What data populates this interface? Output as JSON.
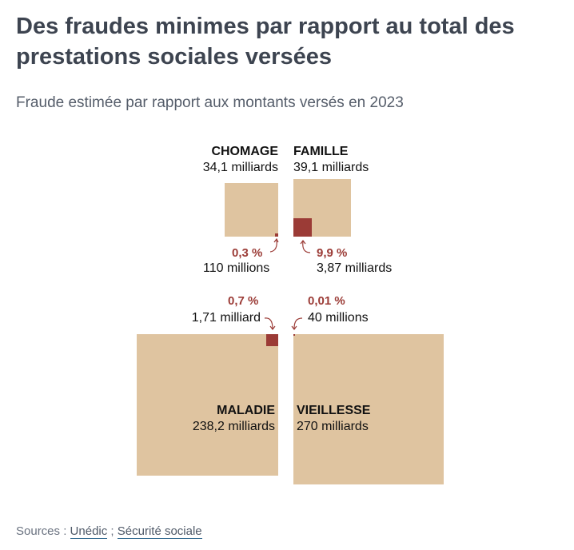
{
  "title": "Des fraudes minimes par rapport au total des prestations sociales versées",
  "subtitle": "Fraude estimée par rapport aux montants versés en 2023",
  "chart_data": {
    "type": "proportional-squares",
    "unit": "milliards d'euros",
    "colors": {
      "total": "#dfc4a0",
      "fraud": "#9b3b36"
    },
    "items": [
      {
        "key": "chomage",
        "name": "CHOMAGE",
        "total_label": "34,1 milliards",
        "total": 34.1,
        "fraud_pct_label": "0,3 %",
        "fraud_label": "110 millions",
        "fraud": 0.11
      },
      {
        "key": "famille",
        "name": "FAMILLE",
        "total_label": "39,1 milliards",
        "total": 39.1,
        "fraud_pct_label": "9,9 %",
        "fraud_label": "3,87 milliards",
        "fraud": 3.87
      },
      {
        "key": "maladie",
        "name": "MALADIE",
        "total_label": "238,2 milliards",
        "total": 238.2,
        "fraud_pct_label": "0,7 %",
        "fraud_label": "1,71 milliard",
        "fraud": 1.71
      },
      {
        "key": "vieillesse",
        "name": "VIEILLESSE",
        "total_label": "270 milliards",
        "total": 270,
        "fraud_pct_label": "0,01 %",
        "fraud_label": "40 millions",
        "fraud": 0.04
      }
    ]
  },
  "sources": {
    "prefix": "Sources :",
    "links": [
      "Unédic",
      "Sécurité sociale"
    ],
    "separator": ";"
  }
}
